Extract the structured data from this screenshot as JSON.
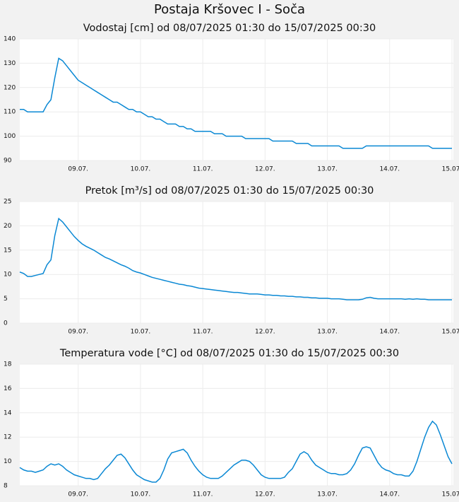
{
  "title": "Postaja Kršovec I - Soča",
  "chart_data": [
    {
      "type": "line",
      "title": "Vodostaj [cm] od 08/07/2025 01:30 do 15/07/2025 00:30",
      "color": "#0a88d4",
      "grid": true,
      "ylim": [
        90,
        140
      ],
      "yticks": [
        90,
        100,
        110,
        120,
        130,
        140
      ],
      "categories": [
        null,
        null,
        null,
        null,
        null,
        null,
        null,
        null,
        null,
        null,
        null,
        null,
        null,
        null,
        null,
        "09.07.",
        null,
        null,
        null,
        null,
        null,
        null,
        null,
        null,
        null,
        null,
        null,
        null,
        null,
        null,
        null,
        "10.07.",
        null,
        null,
        null,
        null,
        null,
        null,
        null,
        null,
        null,
        null,
        null,
        null,
        null,
        null,
        null,
        "11.07.",
        null,
        null,
        null,
        null,
        null,
        null,
        null,
        null,
        null,
        null,
        null,
        null,
        null,
        null,
        null,
        "12.07.",
        null,
        null,
        null,
        null,
        null,
        null,
        null,
        null,
        null,
        null,
        null,
        null,
        null,
        null,
        null,
        "13.07.",
        null,
        null,
        null,
        null,
        null,
        null,
        null,
        null,
        null,
        null,
        null,
        null,
        null,
        null,
        null,
        "14.07.",
        null,
        null,
        null,
        null,
        null,
        null,
        null,
        null,
        null,
        null,
        null,
        null,
        null,
        null,
        null,
        "15.07."
      ],
      "values": [
        111,
        111,
        110,
        110,
        110,
        110,
        110,
        113,
        115,
        124,
        132,
        131,
        129,
        127,
        125,
        123,
        122,
        121,
        120,
        119,
        118,
        117,
        116,
        115,
        114,
        114,
        113,
        112,
        111,
        111,
        110,
        110,
        109,
        108,
        108,
        107,
        107,
        106,
        105,
        105,
        105,
        104,
        104,
        103,
        103,
        102,
        102,
        102,
        102,
        102,
        101,
        101,
        101,
        100,
        100,
        100,
        100,
        100,
        99,
        99,
        99,
        99,
        99,
        99,
        99,
        98,
        98,
        98,
        98,
        98,
        98,
        97,
        97,
        97,
        97,
        96,
        96,
        96,
        96,
        96,
        96,
        96,
        96,
        95,
        95,
        95,
        95,
        95,
        95,
        96,
        96,
        96,
        96,
        96,
        96,
        96,
        96,
        96,
        96,
        96,
        96,
        96,
        96,
        96,
        96,
        96,
        95,
        95,
        95,
        95,
        95,
        95
      ]
    },
    {
      "type": "line",
      "title": "Pretok [m³/s] od 08/07/2025 01:30 do 15/07/2025 00:30",
      "color": "#0a88d4",
      "grid": true,
      "ylim": [
        0,
        25
      ],
      "yticks": [
        0,
        5,
        10,
        15,
        20,
        25
      ],
      "categories": [
        null,
        null,
        null,
        null,
        null,
        null,
        null,
        null,
        null,
        null,
        null,
        null,
        null,
        null,
        null,
        "09.07.",
        null,
        null,
        null,
        null,
        null,
        null,
        null,
        null,
        null,
        null,
        null,
        null,
        null,
        null,
        null,
        "10.07.",
        null,
        null,
        null,
        null,
        null,
        null,
        null,
        null,
        null,
        null,
        null,
        null,
        null,
        null,
        null,
        "11.07.",
        null,
        null,
        null,
        null,
        null,
        null,
        null,
        null,
        null,
        null,
        null,
        null,
        null,
        null,
        null,
        "12.07.",
        null,
        null,
        null,
        null,
        null,
        null,
        null,
        null,
        null,
        null,
        null,
        null,
        null,
        null,
        null,
        "13.07.",
        null,
        null,
        null,
        null,
        null,
        null,
        null,
        null,
        null,
        null,
        null,
        null,
        null,
        null,
        null,
        "14.07.",
        null,
        null,
        null,
        null,
        null,
        null,
        null,
        null,
        null,
        null,
        null,
        null,
        null,
        null,
        null,
        "15.07."
      ],
      "values": [
        10.5,
        10.2,
        9.6,
        9.6,
        9.8,
        10,
        10.2,
        12,
        13,
        18,
        21.5,
        20.8,
        19.8,
        18.8,
        17.8,
        17,
        16.3,
        15.8,
        15.4,
        15,
        14.5,
        14,
        13.5,
        13.2,
        12.8,
        12.4,
        12,
        11.7,
        11.3,
        10.8,
        10.5,
        10.3,
        10,
        9.7,
        9.4,
        9.2,
        9,
        8.8,
        8.6,
        8.4,
        8.2,
        8,
        7.9,
        7.7,
        7.6,
        7.4,
        7.2,
        7.1,
        7,
        6.9,
        6.8,
        6.7,
        6.6,
        6.5,
        6.4,
        6.3,
        6.3,
        6.2,
        6.1,
        6,
        6,
        6,
        5.9,
        5.8,
        5.8,
        5.7,
        5.7,
        5.6,
        5.6,
        5.5,
        5.5,
        5.4,
        5.4,
        5.3,
        5.3,
        5.2,
        5.2,
        5.1,
        5.1,
        5.1,
        5,
        5,
        5,
        4.9,
        4.8,
        4.8,
        4.8,
        4.8,
        4.9,
        5.2,
        5.3,
        5.1,
        5,
        5,
        5,
        5,
        5,
        5,
        5,
        4.9,
        5,
        4.9,
        5,
        4.9,
        4.9,
        4.8,
        4.8,
        4.8,
        4.8,
        4.8,
        4.8,
        4.8
      ]
    },
    {
      "type": "line",
      "title": "Temperatura vode [°C] od 08/07/2025 01:30 do 15/07/2025 00:30",
      "color": "#0a88d4",
      "grid": true,
      "ylim": [
        8,
        18
      ],
      "yticks": [
        8,
        10,
        12,
        14,
        16,
        18
      ],
      "categories": [
        null,
        null,
        null,
        null,
        null,
        null,
        null,
        null,
        null,
        null,
        null,
        null,
        null,
        null,
        null,
        "09.07.",
        null,
        null,
        null,
        null,
        null,
        null,
        null,
        null,
        null,
        null,
        null,
        null,
        null,
        null,
        null,
        "10.07.",
        null,
        null,
        null,
        null,
        null,
        null,
        null,
        null,
        null,
        null,
        null,
        null,
        null,
        null,
        null,
        "11.07.",
        null,
        null,
        null,
        null,
        null,
        null,
        null,
        null,
        null,
        null,
        null,
        null,
        null,
        null,
        null,
        "12.07.",
        null,
        null,
        null,
        null,
        null,
        null,
        null,
        null,
        null,
        null,
        null,
        null,
        null,
        null,
        null,
        "13.07.",
        null,
        null,
        null,
        null,
        null,
        null,
        null,
        null,
        null,
        null,
        null,
        null,
        null,
        null,
        null,
        "14.07.",
        null,
        null,
        null,
        null,
        null,
        null,
        null,
        null,
        null,
        null,
        null,
        null,
        null,
        null,
        null,
        "15.07."
      ],
      "values": [
        9.5,
        9.3,
        9.2,
        9.2,
        9.1,
        9.2,
        9.3,
        9.6,
        9.8,
        9.7,
        9.8,
        9.6,
        9.3,
        9.1,
        8.9,
        8.8,
        8.7,
        8.6,
        8.6,
        8.5,
        8.6,
        9,
        9.4,
        9.7,
        10.1,
        10.5,
        10.6,
        10.3,
        9.8,
        9.3,
        8.9,
        8.7,
        8.5,
        8.4,
        8.3,
        8.3,
        8.6,
        9.3,
        10.2,
        10.7,
        10.8,
        10.9,
        11,
        10.7,
        10.1,
        9.6,
        9.2,
        8.9,
        8.7,
        8.6,
        8.6,
        8.6,
        8.8,
        9.1,
        9.4,
        9.7,
        9.9,
        10.1,
        10.1,
        10,
        9.7,
        9.3,
        8.9,
        8.7,
        8.6,
        8.6,
        8.6,
        8.6,
        8.7,
        9.1,
        9.4,
        10,
        10.6,
        10.8,
        10.6,
        10.1,
        9.7,
        9.5,
        9.3,
        9.1,
        9,
        9,
        8.9,
        8.9,
        9,
        9.3,
        9.8,
        10.5,
        11.1,
        11.2,
        11.1,
        10.5,
        9.9,
        9.5,
        9.3,
        9.2,
        9,
        8.9,
        8.9,
        8.8,
        8.8,
        9.2,
        10,
        11,
        12,
        12.8,
        13.3,
        13,
        12.2,
        11.3,
        10.4,
        9.8
      ]
    }
  ]
}
